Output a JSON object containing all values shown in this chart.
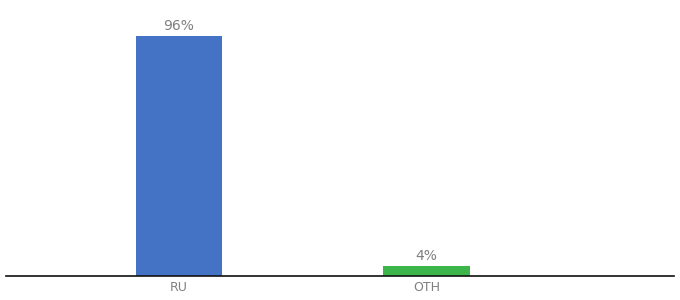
{
  "categories": [
    "RU",
    "OTH"
  ],
  "values": [
    96,
    4
  ],
  "bar_colors": [
    "#4472c4",
    "#3cb54a"
  ],
  "label_texts": [
    "96%",
    "4%"
  ],
  "background_color": "#ffffff",
  "text_color": "#7f7f7f",
  "label_fontsize": 10,
  "tick_fontsize": 9,
  "ylim": [
    0,
    108
  ],
  "bar_width": 0.35,
  "x_positions": [
    1,
    2
  ],
  "xlim": [
    0.3,
    3.0
  ],
  "figsize": [
    6.8,
    3.0
  ],
  "dpi": 100
}
